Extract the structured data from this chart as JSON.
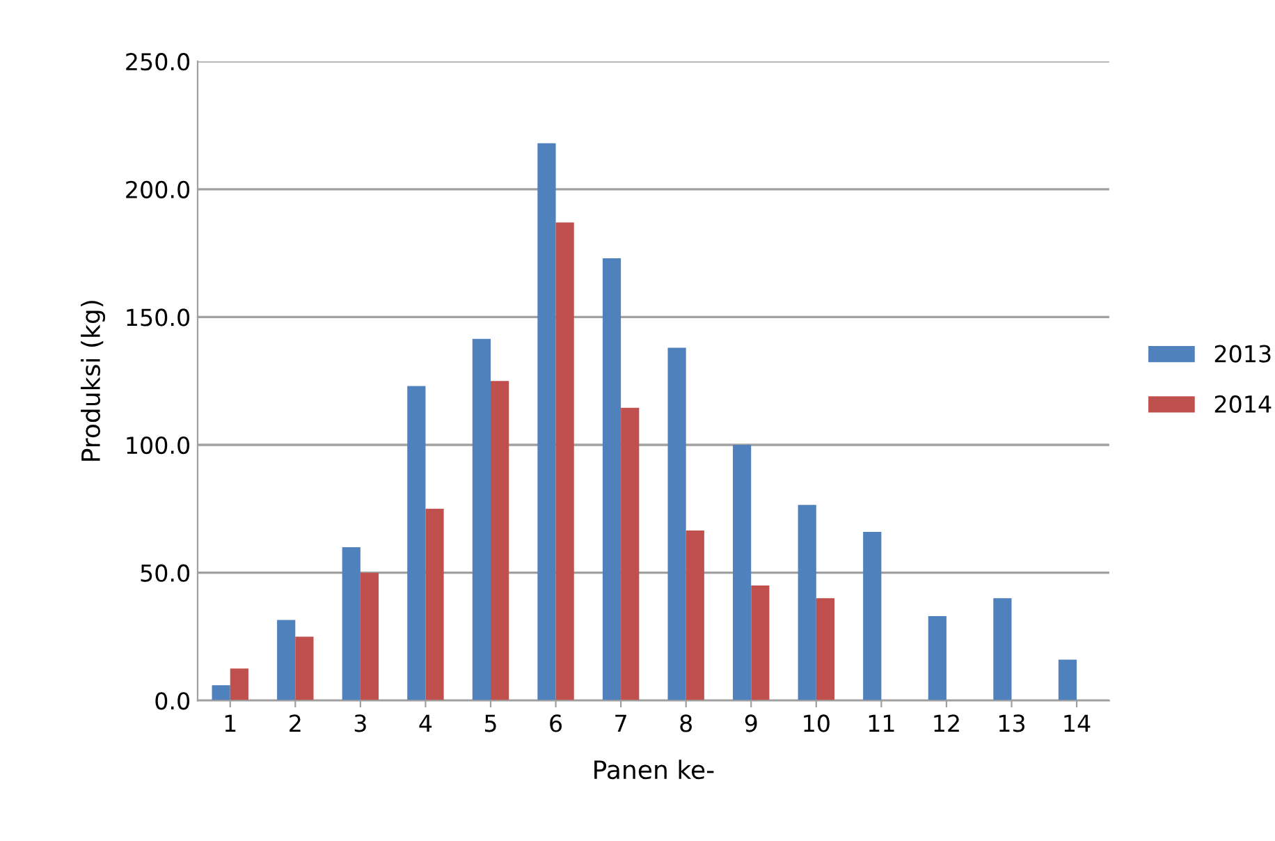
{
  "chart_data": {
    "type": "bar",
    "xlabel": "Panen ke-",
    "ylabel": "Produksi (kg)",
    "categories": [
      "1",
      "2",
      "3",
      "4",
      "5",
      "6",
      "7",
      "8",
      "9",
      "10",
      "11",
      "12",
      "13",
      "14"
    ],
    "series": [
      {
        "name": "2013",
        "color": "#4f81bd",
        "values": [
          6,
          31.5,
          60,
          123,
          141.5,
          218,
          173,
          138,
          100,
          76.5,
          66,
          33,
          40,
          16
        ]
      },
      {
        "name": "2014",
        "color": "#c0504d",
        "values": [
          12.5,
          25,
          50,
          75,
          125,
          187,
          114.5,
          66.5,
          45,
          40,
          null,
          null,
          null,
          null
        ]
      }
    ],
    "ylim": [
      0,
      250
    ],
    "yticks": [
      {
        "value": 0,
        "label": "0.0"
      },
      {
        "value": 50,
        "label": "50.0"
      },
      {
        "value": 100,
        "label": "100.0"
      },
      {
        "value": 150,
        "label": "150.0"
      },
      {
        "value": 200,
        "label": "200.0"
      },
      {
        "value": 250,
        "label": "250.0"
      }
    ],
    "grid": "y",
    "legend": "right"
  }
}
